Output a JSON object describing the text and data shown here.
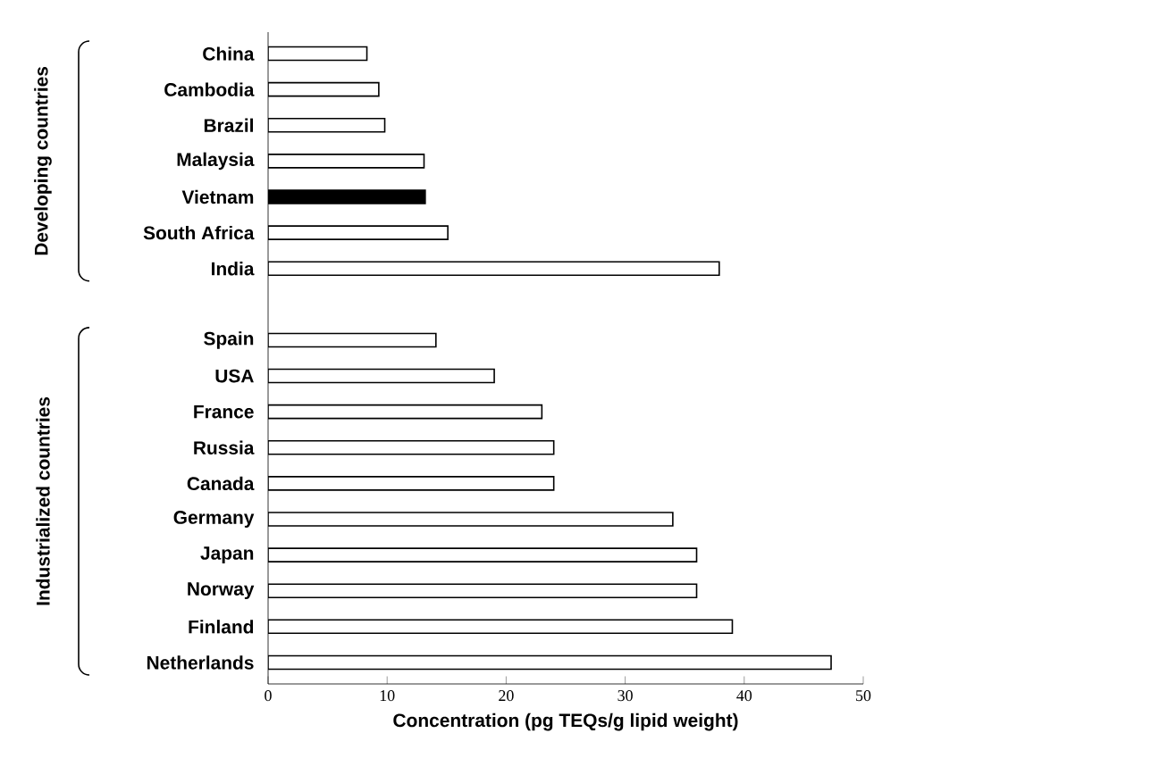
{
  "chart_data": {
    "type": "bar",
    "orientation": "horizontal",
    "xlabel": "Concentration (pg TEQs/g lipid weight)",
    "categories": [
      "China",
      "Cambodia",
      "Brazil",
      "Malaysia",
      "Vietnam",
      "South Africa",
      "India",
      null,
      "Spain",
      "USA",
      "France",
      "Russia",
      "Canada",
      "Germany",
      "Japan",
      "Norway",
      "Finland",
      "Netherlands"
    ],
    "values": [
      8.3,
      9.3,
      9.8,
      13.1,
      13.2,
      15.1,
      37.9,
      null,
      14.1,
      19.0,
      23.0,
      24.0,
      24.0,
      34.0,
      36.0,
      36.0,
      39.0,
      47.3
    ],
    "colors": [
      "#ffffff",
      "#ffffff",
      "#ffffff",
      "#ffffff",
      "#000000",
      "#ffffff",
      "#ffffff",
      "#ffffff",
      "#ffffff",
      "#ffffff",
      "#ffffff",
      "#ffffff",
      "#ffffff",
      "#ffffff",
      "#ffffff",
      "#ffffff",
      "#ffffff",
      "#ffffff"
    ],
    "annotations": [
      "Developing countries",
      "Industrialized countries"
    ],
    "xlim": [
      0,
      50
    ],
    "xticks": [
      0,
      10,
      20,
      30,
      40,
      50
    ]
  }
}
